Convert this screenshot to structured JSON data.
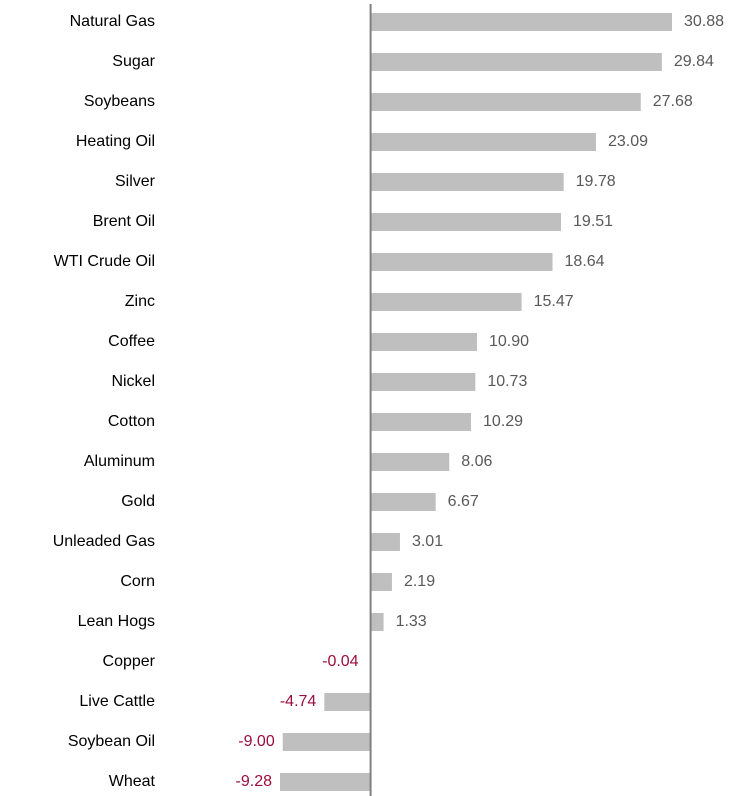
{
  "chart_data": {
    "type": "bar",
    "orientation": "horizontal",
    "categories": [
      "Natural Gas",
      "Sugar",
      "Soybeans",
      "Heating Oil",
      "Silver",
      "Brent Oil",
      "WTI Crude Oil",
      "Zinc",
      "Coffee",
      "Nickel",
      "Cotton",
      "Aluminum",
      "Gold",
      "Unleaded Gas",
      "Corn",
      "Lean Hogs",
      "Copper",
      "Live Cattle",
      "Soybean Oil",
      "Wheat"
    ],
    "values": [
      30.88,
      29.84,
      27.68,
      23.09,
      19.78,
      19.51,
      18.64,
      15.47,
      10.9,
      10.73,
      10.29,
      8.06,
      6.67,
      3.01,
      2.19,
      1.33,
      -0.04,
      -4.74,
      -9.0,
      -9.28
    ],
    "value_labels": [
      "30.88",
      "29.84",
      "27.68",
      "23.09",
      "19.78",
      "19.51",
      "18.64",
      "15.47",
      "10.90",
      "10.73",
      "10.29",
      "8.06",
      "6.67",
      "3.01",
      "2.19",
      "1.33",
      "-0.04",
      "-4.74",
      "-9.00",
      "-9.28"
    ],
    "color": "#bfbfbf",
    "label_color": "#595959",
    "negative_label_color": "#9b0d3a"
  }
}
